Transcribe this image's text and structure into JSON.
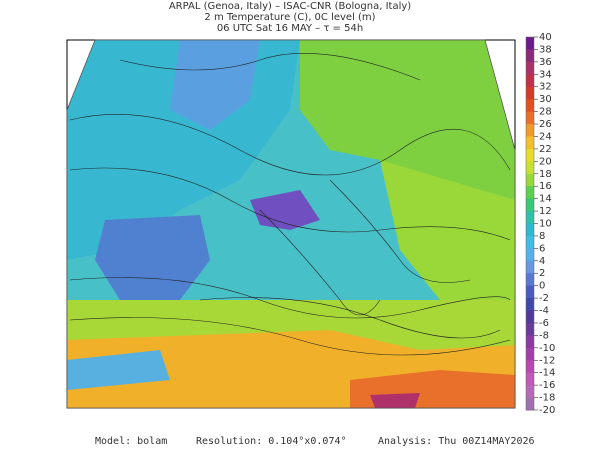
{
  "header": {
    "line1": "ARPAL (Genoa, Italy)  –  ISAC-CNR (Bologna, Italy)",
    "line2": "2 m Temperature (C), 0C level (m)",
    "line3": "06 UTC Sat 16 MAY  –  τ = 54h"
  },
  "colorbar": {
    "ticks": [
      40,
      38,
      36,
      34,
      32,
      30,
      28,
      26,
      24,
      22,
      20,
      18,
      16,
      14,
      12,
      10,
      8,
      6,
      4,
      2,
      0,
      -2,
      -4,
      -6,
      -8,
      -10,
      -12,
      -14,
      -16,
      -18,
      -20
    ],
    "colors": [
      "#6a1b8a",
      "#8a2a7a",
      "#a8326a",
      "#c0304a",
      "#d43a2a",
      "#e05020",
      "#e8702a",
      "#f09a2a",
      "#f2c02a",
      "#e8dc2a",
      "#c8e030",
      "#98d83a",
      "#5cd050",
      "#38c878",
      "#30c0a8",
      "#30b8cc",
      "#40bce0",
      "#58b0e8",
      "#6898e0",
      "#5a78d0",
      "#4a5cc0",
      "#4048a8",
      "#503c98",
      "#6a3a98",
      "#8a3aa0",
      "#a040a8",
      "#b848b0",
      "#c058b8",
      "#b868b8",
      "#a070b0"
    ]
  },
  "footer": {
    "model": "Model: bolam",
    "resolution": "Resolution: 0.104°x0.074°",
    "analysis": "Analysis: Thu 00Z14MAY2026"
  }
}
